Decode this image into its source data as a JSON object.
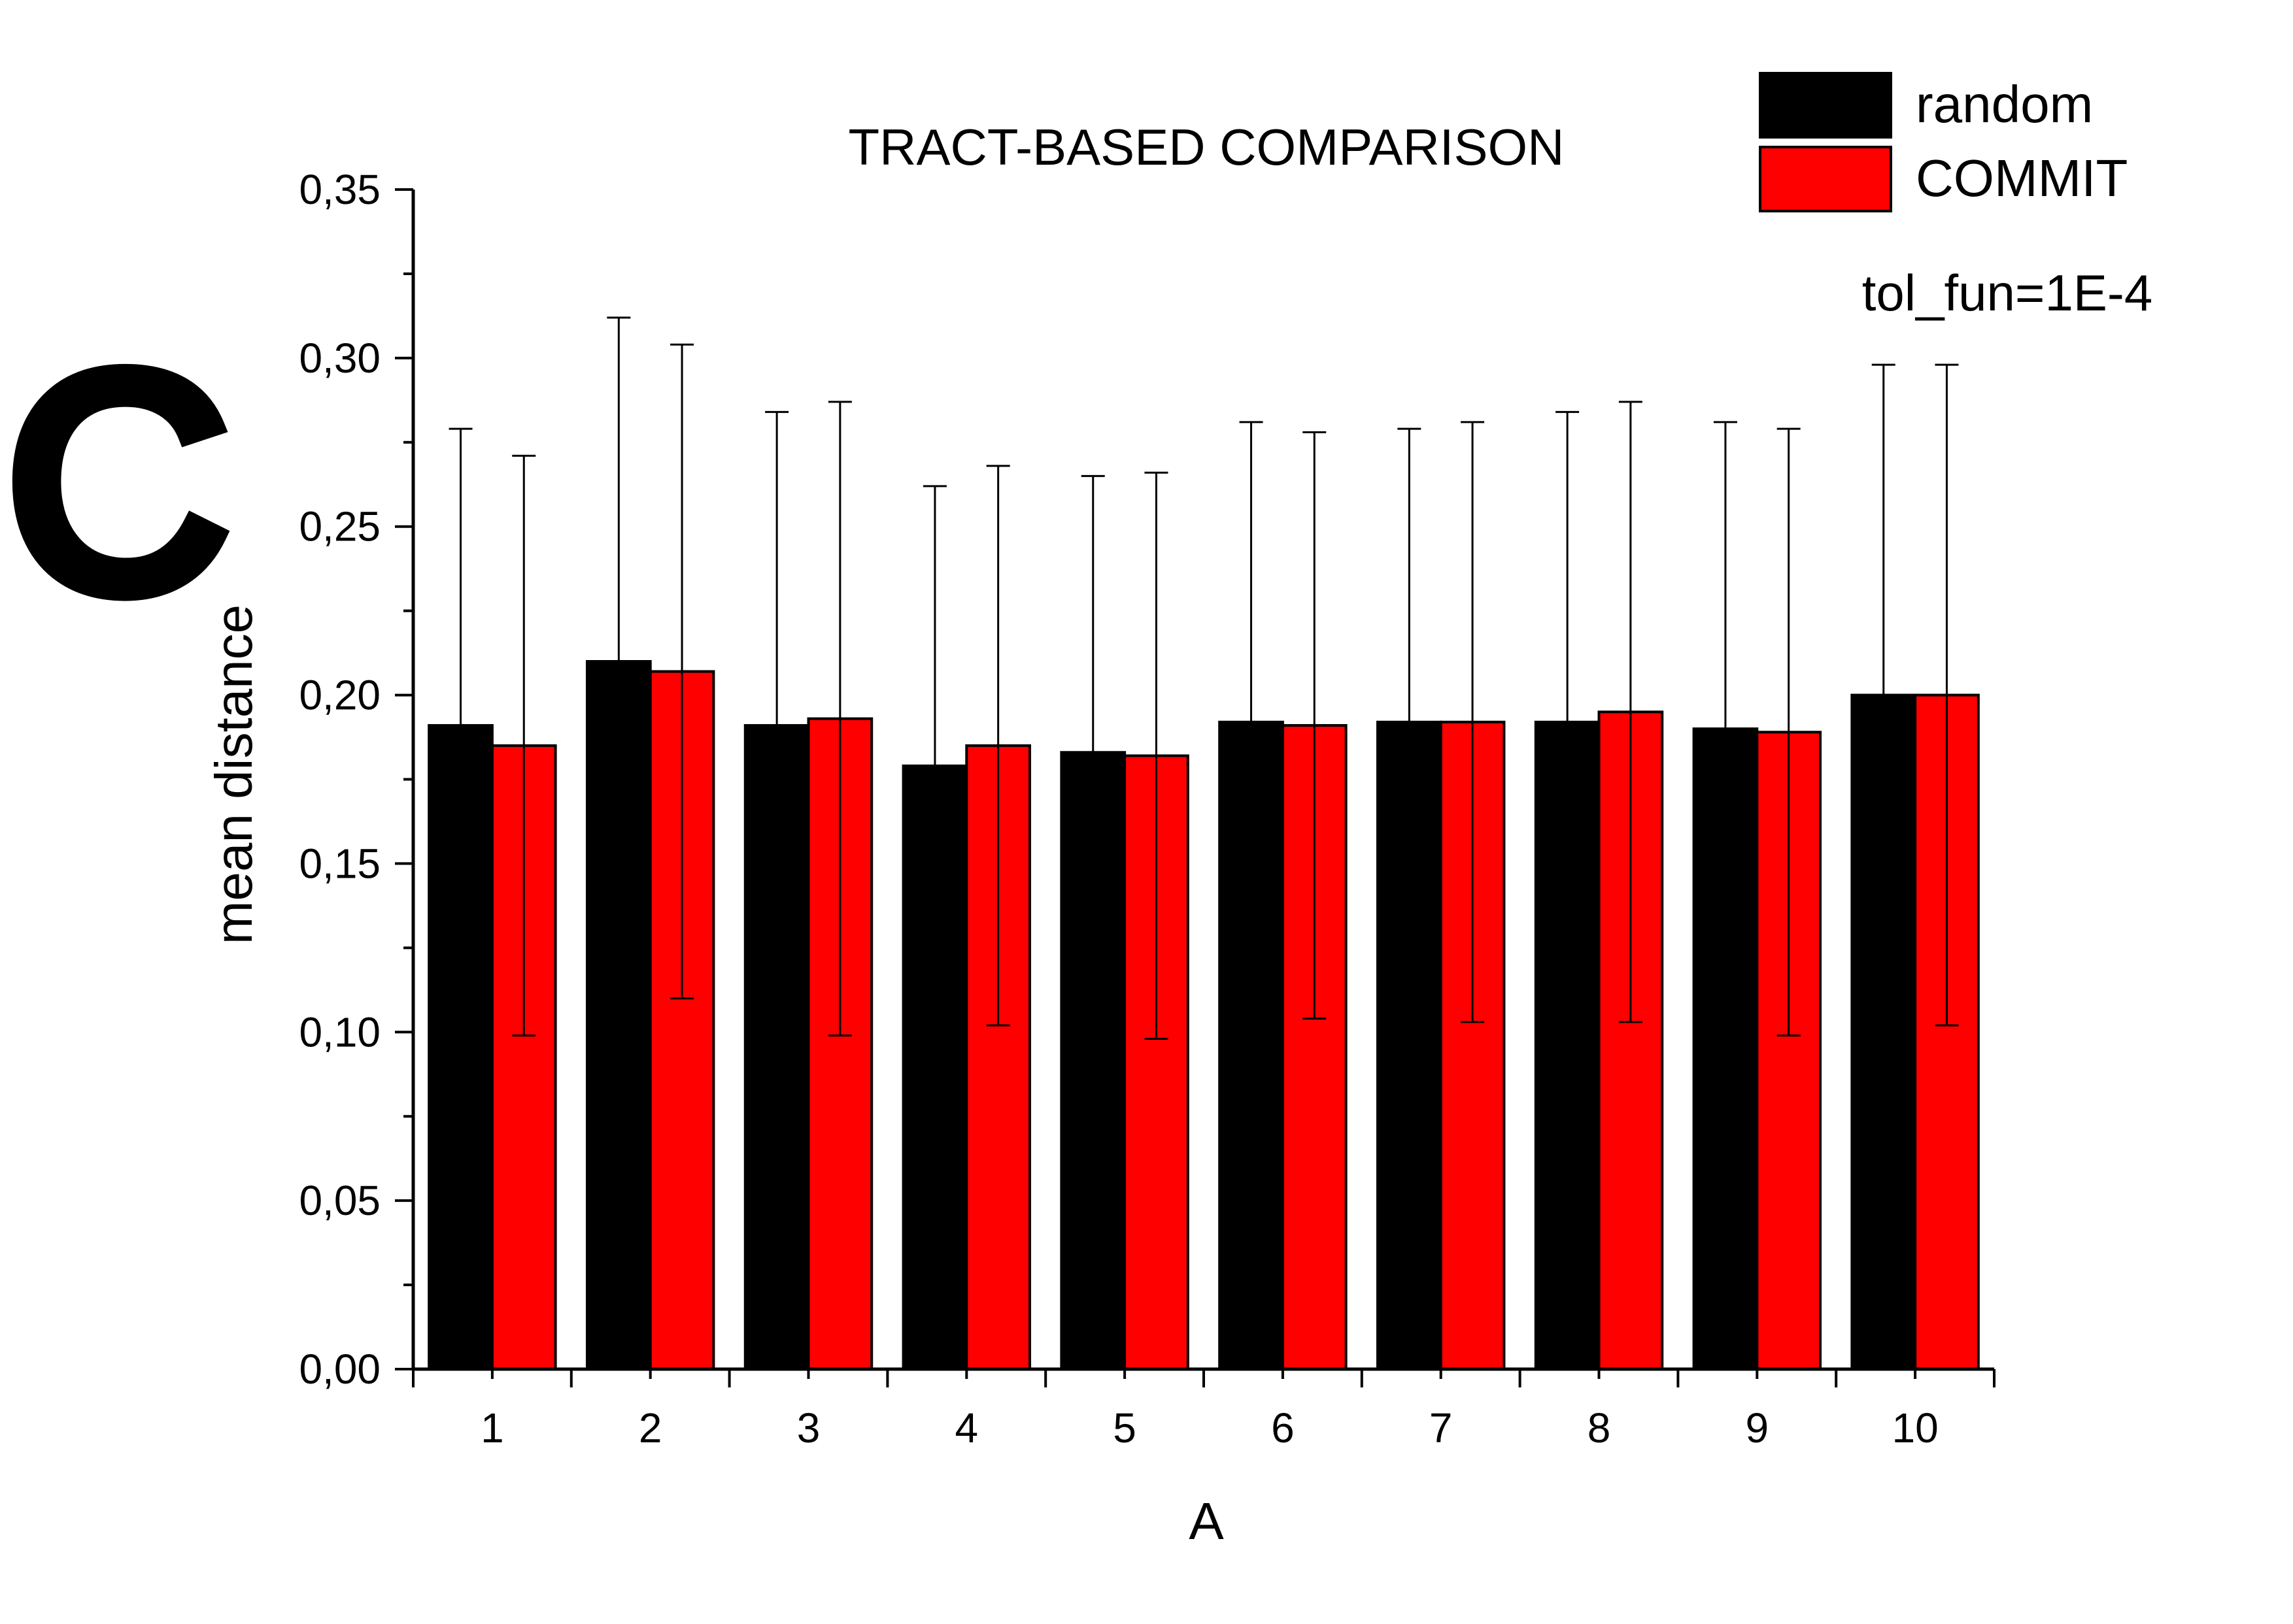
{
  "panel_letter": "C",
  "chart_data": {
    "type": "bar",
    "title": "TRACT-BASED COMPARISON",
    "annotation": "tol_fun=1E-4",
    "xlabel": "A",
    "ylabel": "mean distance",
    "categories": [
      "1",
      "2",
      "3",
      "4",
      "5",
      "6",
      "7",
      "8",
      "9",
      "10"
    ],
    "ylim": [
      0,
      0.35
    ],
    "yticks": [
      "0,00",
      "0,05",
      "0,10",
      "0,15",
      "0,20",
      "0,25",
      "0,30",
      "0,35"
    ],
    "legend_position": "top-right",
    "series": [
      {
        "name": "random",
        "color": "#000000",
        "values": [
          0.191,
          0.21,
          0.191,
          0.179,
          0.183,
          0.192,
          0.192,
          0.192,
          0.19,
          0.2
        ],
        "error": [
          0.088,
          0.102,
          0.093,
          0.083,
          0.082,
          0.089,
          0.087,
          0.092,
          0.091,
          0.098
        ]
      },
      {
        "name": "COMMIT",
        "color": "#ff0000",
        "values": [
          0.185,
          0.207,
          0.193,
          0.185,
          0.182,
          0.191,
          0.192,
          0.195,
          0.189,
          0.2
        ],
        "error": [
          0.086,
          0.097,
          0.094,
          0.083,
          0.084,
          0.087,
          0.089,
          0.092,
          0.09,
          0.098
        ]
      }
    ]
  }
}
